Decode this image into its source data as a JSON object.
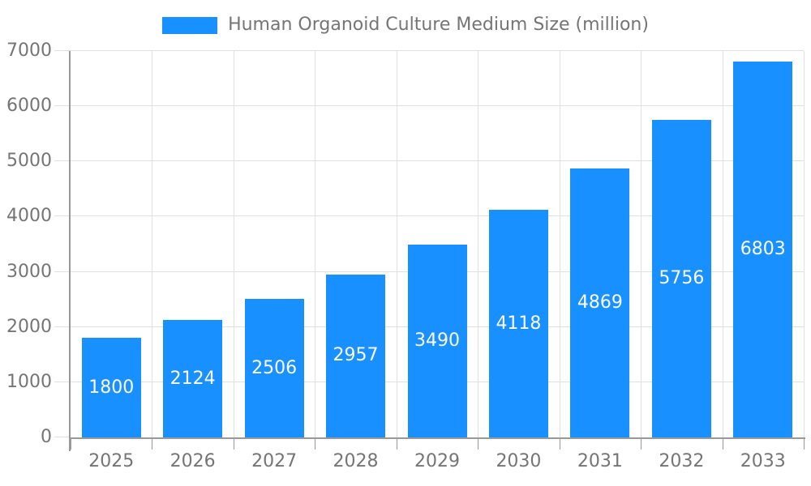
{
  "legend": {
    "label": "Human Organoid Culture Medium Size (million)",
    "swatch_color": "#1890FF"
  },
  "chart_data": {
    "type": "bar",
    "title": "Human Organoid Culture Medium Size (million)",
    "categories": [
      "2025",
      "2026",
      "2027",
      "2028",
      "2029",
      "2030",
      "2031",
      "2032",
      "2033"
    ],
    "values": [
      1800,
      2124,
      2506,
      2957,
      3490,
      4118,
      4869,
      5756,
      6803
    ],
    "xlabel": "",
    "ylabel": "",
    "ylim": [
      0,
      7000
    ],
    "yticks": [
      0,
      1000,
      2000,
      3000,
      4000,
      5000,
      6000,
      7000
    ],
    "grid": true,
    "legend_position": "top-center",
    "value_label_position": "inside-center",
    "colors": {
      "bar": "#1890FF",
      "value_label": "#FFFFFF",
      "axis_text": "#757575",
      "axis_line": "#999999",
      "gridline": "#E0E0E0",
      "background": "#FFFFFF"
    }
  }
}
